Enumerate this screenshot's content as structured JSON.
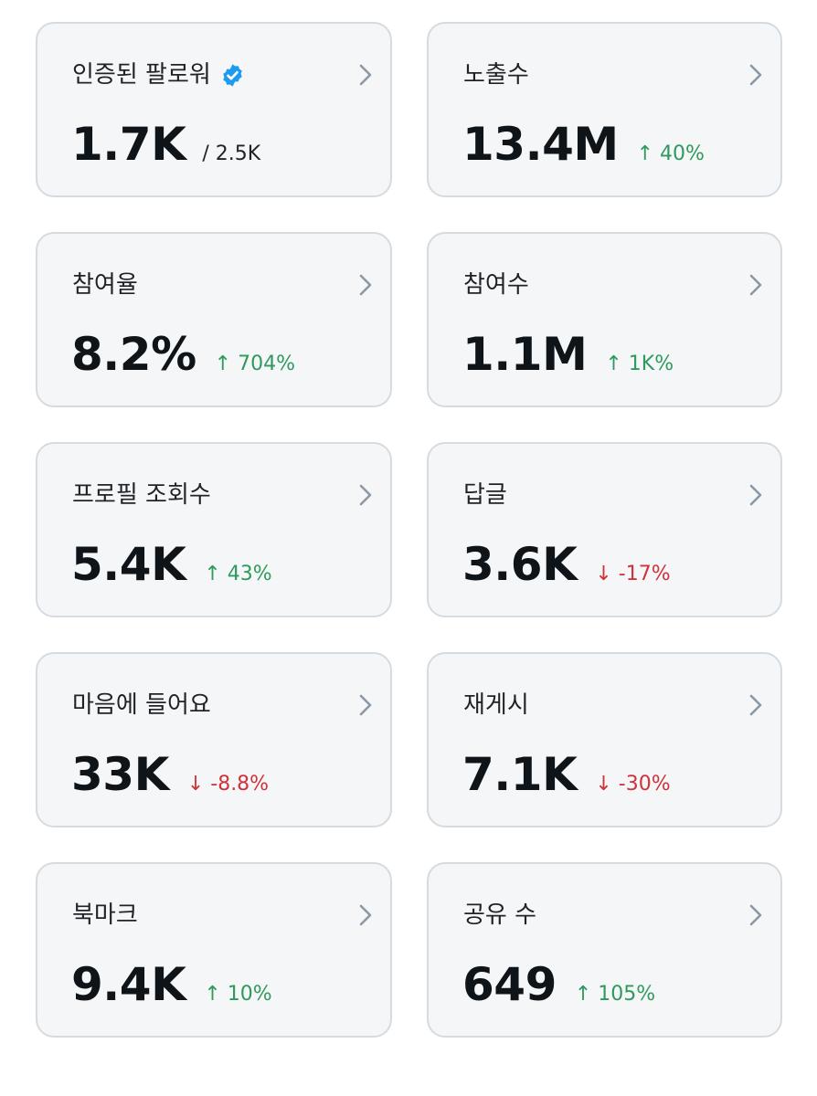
{
  "colors": {
    "card_background": "#f5f6f7",
    "card_border": "#d6dbe0",
    "up": "#2e9a5e",
    "down": "#d0323a",
    "verified_badge": "#1d9bf0",
    "chevron": "#8b98a5"
  },
  "cards": [
    {
      "title": "인증된 팔로워",
      "verified": true,
      "value": "1.7K",
      "sub": "/ 2.5K",
      "change": "",
      "direction": "none",
      "chevron_icon": "chevron-right-icon"
    },
    {
      "title": "노출수",
      "verified": false,
      "value": "13.4M",
      "sub": "",
      "change": "↑ 40%",
      "direction": "up",
      "chevron_icon": "chevron-right-icon"
    },
    {
      "title": "참여율",
      "verified": false,
      "value": "8.2%",
      "sub": "",
      "change": "↑ 704%",
      "direction": "up",
      "chevron_icon": "chevron-right-icon"
    },
    {
      "title": "참여수",
      "verified": false,
      "value": "1.1M",
      "sub": "",
      "change": "↑ 1K%",
      "direction": "up",
      "chevron_icon": "chevron-right-icon"
    },
    {
      "title": "프로필 조회수",
      "verified": false,
      "value": "5.4K",
      "sub": "",
      "change": "↑ 43%",
      "direction": "up",
      "chevron_icon": "chevron-right-icon"
    },
    {
      "title": "답글",
      "verified": false,
      "value": "3.6K",
      "sub": "",
      "change": "↓ -17%",
      "direction": "down",
      "chevron_icon": "chevron-right-icon"
    },
    {
      "title": "마음에 들어요",
      "verified": false,
      "value": "33K",
      "sub": "",
      "change": "↓ -8.8%",
      "direction": "down",
      "chevron_icon": "chevron-right-icon"
    },
    {
      "title": "재게시",
      "verified": false,
      "value": "7.1K",
      "sub": "",
      "change": "↓ -30%",
      "direction": "down",
      "chevron_icon": "chevron-right-icon"
    },
    {
      "title": "북마크",
      "verified": false,
      "value": "9.4K",
      "sub": "",
      "change": "↑ 10%",
      "direction": "up",
      "chevron_icon": "chevron-right-icon"
    },
    {
      "title": "공유 수",
      "verified": false,
      "value": "649",
      "sub": "",
      "change": "↑ 105%",
      "direction": "up",
      "chevron_icon": "chevron-right-icon"
    }
  ]
}
